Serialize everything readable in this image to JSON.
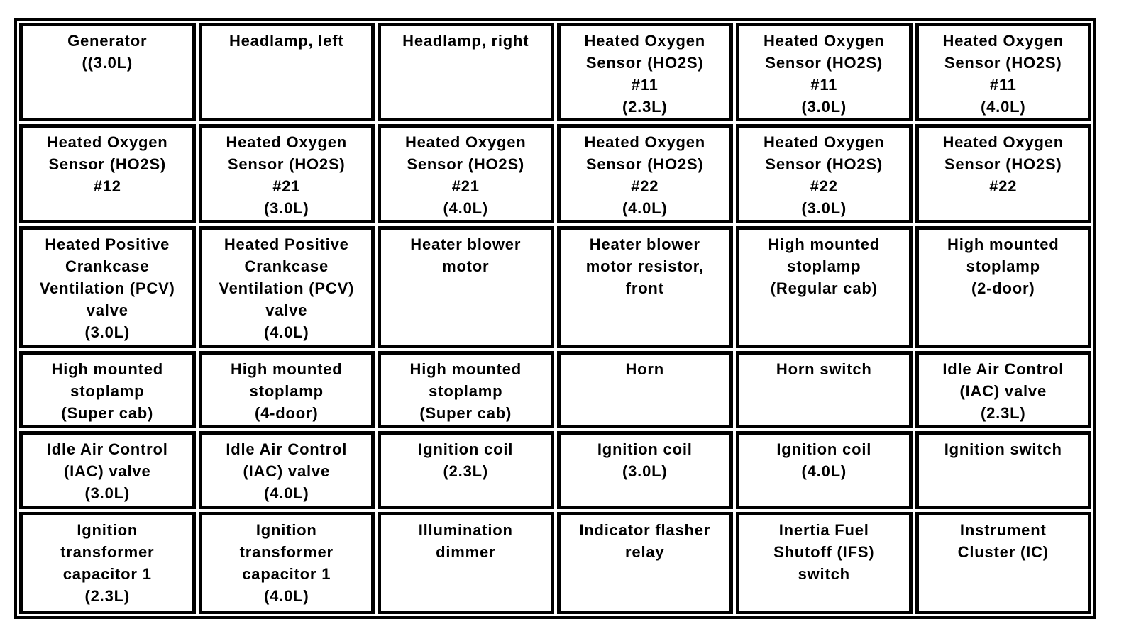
{
  "colors": {
    "border": "#000000",
    "background": "#ffffff",
    "text": "#000000"
  },
  "grid": {
    "rows": [
      {
        "cells": [
          {
            "text": "Generator\n((3.0L)"
          },
          {
            "text": "Headlamp, left"
          },
          {
            "text": "Headlamp, right"
          },
          {
            "text": "Heated Oxygen\nSensor (HO2S)\n#11\n(2.3L)"
          },
          {
            "text": "Heated Oxygen\nSensor (HO2S)\n#11\n(3.0L)"
          },
          {
            "text": "Heated Oxygen\nSensor (HO2S)\n#11\n(4.0L)"
          }
        ]
      },
      {
        "cells": [
          {
            "text": "Heated Oxygen\nSensor (HO2S)\n#12"
          },
          {
            "text": "Heated Oxygen\nSensor (HO2S)\n#21\n(3.0L)"
          },
          {
            "text": "Heated Oxygen\nSensor (HO2S)\n#21\n(4.0L)"
          },
          {
            "text": "Heated Oxygen\nSensor (HO2S)\n#22\n(4.0L)"
          },
          {
            "text": "Heated Oxygen\nSensor (HO2S)\n#22\n(3.0L)"
          },
          {
            "text": "Heated Oxygen\nSensor (HO2S)\n#22"
          }
        ]
      },
      {
        "cells": [
          {
            "text": "Heated Positive\nCrankcase\nVentilation (PCV)\nvalve\n(3.0L)"
          },
          {
            "text": "Heated Positive\nCrankcase\nVentilation (PCV)\nvalve\n(4.0L)"
          },
          {
            "text": "Heater blower\nmotor"
          },
          {
            "text": "Heater blower\nmotor resistor,\nfront"
          },
          {
            "text": "High mounted\nstoplamp\n(Regular cab)"
          },
          {
            "text": "High mounted\nstoplamp\n(2-door)"
          }
        ]
      },
      {
        "cells": [
          {
            "text": "High mounted\nstoplamp\n(Super cab)"
          },
          {
            "text": "High mounted\nstoplamp\n(4-door)"
          },
          {
            "text": "High mounted\nstoplamp\n(Super cab)"
          },
          {
            "text": "Horn"
          },
          {
            "text": "Horn switch"
          },
          {
            "text": "Idle Air Control\n(IAC) valve\n(2.3L)"
          }
        ]
      },
      {
        "cells": [
          {
            "text": "Idle Air Control\n(IAC) valve\n(3.0L)"
          },
          {
            "text": "Idle Air Control\n(IAC) valve\n(4.0L)"
          },
          {
            "text": "Ignition coil\n(2.3L)"
          },
          {
            "text": "Ignition coil\n(3.0L)"
          },
          {
            "text": "Ignition coil\n(4.0L)"
          },
          {
            "text": "Ignition switch"
          }
        ]
      },
      {
        "cells": [
          {
            "text": "Ignition\ntransformer\ncapacitor 1\n(2.3L)"
          },
          {
            "text": "Ignition\ntransformer\ncapacitor 1\n(4.0L)"
          },
          {
            "text": "Illumination\ndimmer"
          },
          {
            "text": "Indicator flasher\nrelay"
          },
          {
            "text": "Inertia Fuel\nShutoff (IFS)\nswitch"
          },
          {
            "text": "Instrument\nCluster (IC)"
          }
        ]
      }
    ]
  }
}
